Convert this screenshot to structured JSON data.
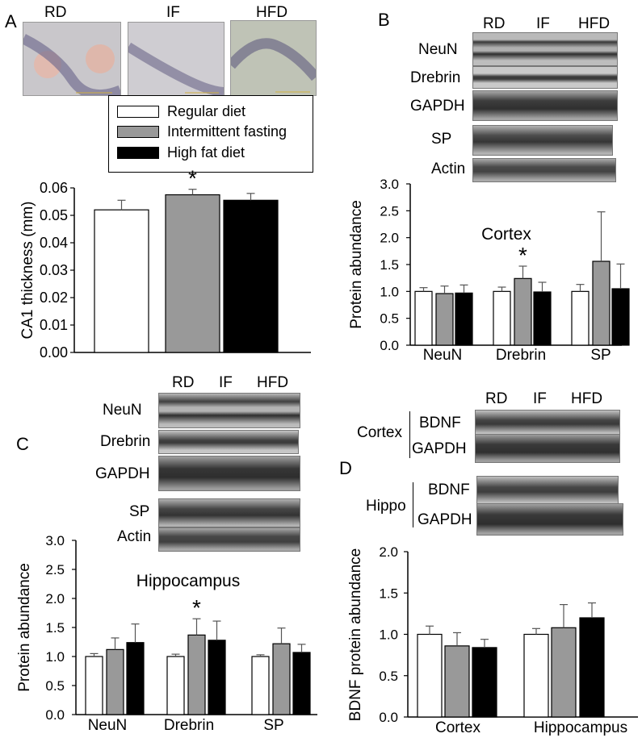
{
  "panels": {
    "A": "A",
    "B": "B",
    "C": "C",
    "D": "D"
  },
  "diet_labels": [
    "RD",
    "IF",
    "HFD"
  ],
  "legend": {
    "items": [
      {
        "label": "Regular diet",
        "color": "#ffffff"
      },
      {
        "label": "Intermittent fasting",
        "color": "#999999"
      },
      {
        "label": "High fat diet",
        "color": "#000000"
      }
    ]
  },
  "blots": {
    "B": [
      "NeuN",
      "Drebrin",
      "GAPDH",
      "SP",
      "Actin"
    ],
    "C": [
      "NeuN",
      "Drebrin",
      "GAPDH",
      "SP",
      "Actin"
    ],
    "D_cortex": {
      "group": "Cortex",
      "bands": [
        "BDNF",
        "GAPDH"
      ]
    },
    "D_hippo": {
      "group": "Hippo",
      "bands": [
        "BDNF",
        "GAPDH"
      ]
    }
  },
  "colors": {
    "RD": "#ffffff",
    "IF": "#999999",
    "HFD": "#000000"
  },
  "chart_data": [
    {
      "id": "A",
      "type": "bar",
      "categories": [
        "RD",
        "IF",
        "HFD"
      ],
      "values": [
        0.052,
        0.0575,
        0.0555
      ],
      "errors": [
        0.0035,
        0.002,
        0.0025
      ],
      "significance": [
        "",
        "*",
        ""
      ],
      "ylabel": "CA1 thickness (mm)",
      "xlabel": "",
      "ylim": [
        0,
        0.06
      ],
      "yticks": [
        "0.00",
        "0.01",
        "0.02",
        "0.03",
        "0.04",
        "0.05",
        "0.06"
      ],
      "tick_values": [
        0,
        0.01,
        0.02,
        0.03,
        0.04,
        0.05,
        0.06
      ]
    },
    {
      "id": "B",
      "type": "bar",
      "title": "Cortex",
      "categories": [
        "NeuN",
        "Drebrin",
        "SP"
      ],
      "series": [
        {
          "values": [
            1.0,
            1.0,
            1.0
          ],
          "errors": [
            0.07,
            0.08,
            0.13
          ]
        },
        {
          "values": [
            0.96,
            1.24,
            1.56
          ],
          "errors": [
            0.14,
            0.23,
            0.92
          ]
        },
        {
          "values": [
            0.97,
            0.99,
            1.05
          ],
          "errors": [
            0.15,
            0.18,
            0.46
          ]
        }
      ],
      "significance": {
        "category": 1,
        "series": 1,
        "mark": "*"
      },
      "ylabel": "Protein abundance",
      "ylim": [
        0,
        3.0
      ],
      "yticks": [
        "0.0",
        "0.5",
        "1.0",
        "1.5",
        "2.0",
        "2.5",
        "3.0"
      ],
      "tick_values": [
        0,
        0.5,
        1.0,
        1.5,
        2.0,
        2.5,
        3.0
      ]
    },
    {
      "id": "C",
      "type": "bar",
      "title": "Hippocampus",
      "categories": [
        "NeuN",
        "Drebrin",
        "SP"
      ],
      "series": [
        {
          "values": [
            1.0,
            1.0,
            1.0
          ],
          "errors": [
            0.05,
            0.04,
            0.03
          ]
        },
        {
          "values": [
            1.12,
            1.37,
            1.22
          ],
          "errors": [
            0.2,
            0.28,
            0.27
          ]
        },
        {
          "values": [
            1.24,
            1.28,
            1.07
          ],
          "errors": [
            0.32,
            0.33,
            0.14
          ]
        }
      ],
      "significance": {
        "category": 1,
        "series": 1,
        "mark": "*"
      },
      "ylabel": "Protein abundance",
      "ylim": [
        0,
        3.0
      ],
      "yticks": [
        "0.0",
        "0.5",
        "1.0",
        "1.5",
        "2.0",
        "2.5",
        "3.0"
      ],
      "tick_values": [
        0,
        0.5,
        1.0,
        1.5,
        2.0,
        2.5,
        3.0
      ]
    },
    {
      "id": "D",
      "type": "bar",
      "categories": [
        "Cortex",
        "Hippocampus"
      ],
      "series": [
        {
          "values": [
            1.0,
            1.0
          ],
          "errors": [
            0.1,
            0.07
          ]
        },
        {
          "values": [
            0.86,
            1.08
          ],
          "errors": [
            0.16,
            0.28
          ]
        },
        {
          "values": [
            0.84,
            1.2
          ],
          "errors": [
            0.1,
            0.18
          ]
        }
      ],
      "ylabel": "BDNF protein abundance",
      "ylim": [
        0,
        2.0
      ],
      "yticks": [
        "0.0",
        "0.5",
        "1.0",
        "1.5",
        "2.0"
      ],
      "tick_values": [
        0,
        0.5,
        1.0,
        1.5,
        2.0
      ]
    }
  ]
}
